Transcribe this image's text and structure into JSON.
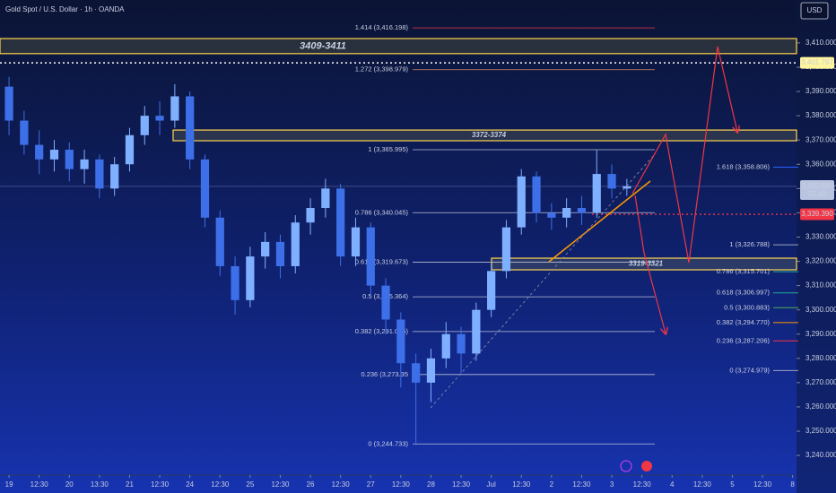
{
  "chart_data": {
    "type": "candlestick",
    "title": "Gold Spot / U.S. Dollar · 1h · OANDA",
    "currency": "USD",
    "up_color": "#7fb0ff",
    "down_color": "#3d6fe8",
    "x": [
      0,
      0.5,
      1,
      1.5,
      2,
      2.5,
      3,
      3.5,
      4,
      4.5,
      5,
      5.5,
      6,
      6.5,
      7,
      7.5,
      8,
      8.5,
      9,
      9.5,
      10,
      10.5,
      11,
      11.5,
      12,
      12.5,
      13,
      13.5,
      14,
      14.5,
      15,
      15.5,
      16,
      16.5,
      17,
      17.5,
      18,
      18.5,
      19,
      19.5,
      20,
      20.5
    ],
    "open": [
      3392,
      3378,
      3368,
      3362,
      3366,
      3358,
      3362,
      3350,
      3360,
      3372,
      3380,
      3378,
      3388,
      3362,
      3338,
      3318,
      3304,
      3322,
      3328,
      3318,
      3336,
      3342,
      3350,
      3322,
      3334,
      3310,
      3296,
      3278,
      3270,
      3280,
      3290,
      3282,
      3300,
      3316,
      3334,
      3355,
      3340,
      3338,
      3342,
      3340,
      3356,
      3350
    ],
    "high": [
      3396,
      3382,
      3374,
      3370,
      3369,
      3366,
      3364,
      3363,
      3375,
      3384,
      3386,
      3393,
      3390,
      3364,
      3341,
      3322,
      3326,
      3332,
      3331,
      3339,
      3346,
      3354,
      3352,
      3338,
      3336,
      3313,
      3299,
      3282,
      3284,
      3295,
      3293,
      3303,
      3319,
      3337,
      3358,
      3357,
      3344,
      3346,
      3347,
      3366,
      3360,
      3354
    ],
    "low": [
      3372,
      3364,
      3356,
      3357,
      3353,
      3352,
      3346,
      3347,
      3357,
      3368,
      3372,
      3375,
      3358,
      3334,
      3314,
      3298,
      3301,
      3317,
      3313,
      3315,
      3331,
      3338,
      3318,
      3318,
      3306,
      3290,
      3268,
      3245,
      3262,
      3276,
      3274,
      3279,
      3297,
      3313,
      3331,
      3336,
      3333,
      3334,
      3335,
      3338,
      3346,
      3347
    ],
    "close": [
      3378,
      3368,
      3362,
      3366,
      3358,
      3362,
      3350,
      3360,
      3372,
      3380,
      3378,
      3388,
      3362,
      3338,
      3318,
      3304,
      3322,
      3328,
      3318,
      3336,
      3342,
      3350,
      3322,
      3334,
      3310,
      3296,
      3278,
      3270,
      3280,
      3290,
      3282,
      3300,
      3316,
      3334,
      3355,
      3340,
      3338,
      3342,
      3340,
      3356,
      3350,
      3351
    ],
    "xlim": [
      -0.3,
      26.13
    ],
    "xticks": [
      {
        "value": 0,
        "label": "19"
      },
      {
        "value": 1,
        "label": "12:30"
      },
      {
        "value": 2,
        "label": "20"
      },
      {
        "value": 3,
        "label": "13:30"
      },
      {
        "value": 4,
        "label": "21"
      },
      {
        "value": 5,
        "label": "12:30"
      },
      {
        "value": 6,
        "label": "24"
      },
      {
        "value": 7,
        "label": "12:30"
      },
      {
        "value": 8,
        "label": "25"
      },
      {
        "value": 9,
        "label": "12:30"
      },
      {
        "value": 10,
        "label": "26"
      },
      {
        "value": 11,
        "label": "12:30"
      },
      {
        "value": 12,
        "label": "27"
      },
      {
        "value": 13,
        "label": "12:30"
      },
      {
        "value": 14,
        "label": "28"
      },
      {
        "value": 15,
        "label": "12:30"
      },
      {
        "value": 16,
        "label": "Jul"
      },
      {
        "value": 17,
        "label": "12:30"
      },
      {
        "value": 18,
        "label": "2"
      },
      {
        "value": 19,
        "label": "12:30"
      },
      {
        "value": 20,
        "label": "3"
      },
      {
        "value": 21,
        "label": "12:30"
      },
      {
        "value": 22,
        "label": "4"
      },
      {
        "value": 23,
        "label": "12:30"
      },
      {
        "value": 24,
        "label": "5"
      },
      {
        "value": 25,
        "label": "12:30"
      },
      {
        "value": 26,
        "label": "8"
      }
    ],
    "ylim": [
      3235.6,
      3427.7
    ],
    "yticks": [
      {
        "value": 3240,
        "label": "3,240.000"
      },
      {
        "value": 3250,
        "label": "3,250.000"
      },
      {
        "value": 3260,
        "label": "3,260.000"
      },
      {
        "value": 3270,
        "label": "3,270.000"
      },
      {
        "value": 3280,
        "label": "3,280.000"
      },
      {
        "value": 3290,
        "label": "3,290.000"
      },
      {
        "value": 3300,
        "label": "3,300.000"
      },
      {
        "value": 3310,
        "label": "3,310.000"
      },
      {
        "value": 3320,
        "label": "3,320.000"
      },
      {
        "value": 3330,
        "label": "3,330.000"
      },
      {
        "value": 3340,
        "label": "3,340.000"
      },
      {
        "value": 3350,
        "label": "3,350.000"
      },
      {
        "value": 3360,
        "label": "3,360.000"
      },
      {
        "value": 3370,
        "label": "3,370.000"
      },
      {
        "value": 3380,
        "label": "3,380.000"
      },
      {
        "value": 3390,
        "label": "3,390.000"
      },
      {
        "value": 3400,
        "label": "3,400.000"
      },
      {
        "value": 3410,
        "label": "3,410.000"
      }
    ],
    "zones": [
      {
        "label": "3409-3411",
        "low": 3405.6,
        "high": 3411.8
      },
      {
        "label": "3372-3374",
        "low": 3369.7,
        "high": 3374.1
      },
      {
        "label": "3319-3321",
        "low": 3316.5,
        "high": 3321.3
      }
    ],
    "fib_retracement": [
      {
        "label": "1.414 (3,416.198)",
        "value": 3416.198,
        "color": "#f23645"
      },
      {
        "label": "1.272 (3,398.979)",
        "value": 3398.979,
        "color": "#d98a6a"
      },
      {
        "label": "1 (3,365.995)",
        "value": 3365.995,
        "color": "#b8bfd6"
      },
      {
        "label": "0.786 (3,340.045)",
        "value": 3340.045,
        "color": "#b8bfd6"
      },
      {
        "label": "0.618 (3,319.673)",
        "value": 3319.673,
        "color": "#b8bfd6"
      },
      {
        "label": "0.5 (3,305.364)",
        "value": 3305.364,
        "color": "#b8bfd6"
      },
      {
        "label": "0.382 (3,291.055)",
        "value": 3291.055,
        "color": "#b8bfd6"
      },
      {
        "label": "0.236 (3,273.35",
        "value": 3273.35,
        "color": "#b8bfd6"
      },
      {
        "label": "0 (3,244.733)",
        "value": 3244.733,
        "color": "#b8bfd6"
      }
    ],
    "fib_extension": [
      {
        "label": "1.618 (3,358.806)",
        "value": 3358.806,
        "color": "#2962ff"
      },
      {
        "label": "1 (3,326.788)",
        "value": 3326.788,
        "color": "#9aa3bd"
      },
      {
        "label": "0.786 (3,315.701)",
        "value": 3315.701,
        "color": "#22ab94"
      },
      {
        "label": "0.618 (3,306.997)",
        "value": 3306.997,
        "color": "#22ab94"
      },
      {
        "label": "0.5 (3,300.883)",
        "value": 3300.883,
        "color": "#4caf50"
      },
      {
        "label": "0.382 (3,294.770)",
        "value": 3294.77,
        "color": "#ff9800"
      },
      {
        "label": "0.236 (3,287.206)",
        "value": 3287.206,
        "color": "#f23645"
      },
      {
        "label": "0 (3,274.979)",
        "value": 3274.979,
        "color": "#9aa3bd"
      }
    ],
    "price_tags": [
      {
        "value": 3401.797,
        "label": "3,401.797",
        "color": "#fff59d"
      },
      {
        "value": 3350.88,
        "label": "3,350.880",
        "sublabel": "53:40",
        "color": "#b8c4e0"
      },
      {
        "value": 3339.39,
        "label": "3,339.390",
        "color": "#f23645"
      }
    ]
  }
}
